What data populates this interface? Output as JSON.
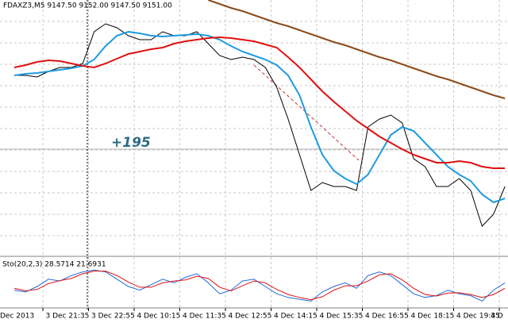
{
  "chart_data": [
    {
      "type": "line",
      "title": "FDAXZ3,M5  9147.50 9152.00 9147.50 9151.00",
      "annotation": "+195",
      "categories": [
        "Dec 2013",
        null,
        null,
        null,
        "3 Dec 21:35",
        null,
        null,
        null,
        "3 Dec 22:55",
        null,
        null,
        null,
        "4 Dec 10:15",
        null,
        null,
        null,
        "4 Dec 11:35",
        null,
        null,
        null,
        "4 Dec 12:55",
        null,
        null,
        null,
        "4 Dec 14:15",
        null,
        null,
        null,
        "4 Dec 15:35",
        null,
        null,
        null,
        "4 Dec 16:55",
        null,
        null,
        null,
        "4 Dec 18:15",
        null,
        null,
        null,
        "4 Dec 19:35",
        null,
        null,
        "4 D"
      ],
      "ylim": [
        9100,
        9180
      ],
      "series": [
        {
          "color": "#000000",
          "values": [
            9156.25,
            9156.25,
            9155.75,
            9157.5,
            9158.75,
            9158.75,
            9160,
            9170,
            9172.5,
            9171.25,
            9168.75,
            9167.5,
            9167.5,
            9170,
            9168.75,
            9168.75,
            9170,
            9166.25,
            9162.5,
            9161.25,
            9162,
            9161.25,
            9158.75,
            9152.5,
            9142.5,
            9131.25,
            9120,
            9122.5,
            9121.25,
            9121.25,
            9120,
            9140,
            9142.5,
            9143.75,
            9141.25,
            9130,
            9127.5,
            9121.25,
            9121.25,
            9123.75,
            9120,
            9108.75,
            9112.5,
            9121.25
          ]
        },
        {
          "color": "#1e9be0",
          "values": [
            9156.25,
            9156.75,
            9157,
            9157.5,
            9158,
            9158.5,
            9159.25,
            9161.25,
            9165.5,
            9168.75,
            9170,
            9169.5,
            9168.75,
            9168.5,
            9168.75,
            9169,
            9169.25,
            9168.75,
            9167.5,
            9165.5,
            9163.75,
            9162.5,
            9161.25,
            9159.5,
            9156.25,
            9150,
            9140,
            9131.25,
            9126.25,
            9123.75,
            9122,
            9125,
            9131.25,
            9137.5,
            9140,
            9138.75,
            9135,
            9131.25,
            9127.5,
            9125,
            9123,
            9118.75,
            9116.25,
            9117.5
          ]
        },
        {
          "color": "#e01010",
          "values": [
            9158.75,
            9159.5,
            9160.5,
            9161,
            9160.75,
            9160,
            9159.25,
            9158.75,
            9160,
            9161.5,
            9163,
            9163.75,
            9164.5,
            9165,
            9166.25,
            9167,
            9167.5,
            9168,
            9168.25,
            9168,
            9167.5,
            9167,
            9166,
            9165,
            9162,
            9158.75,
            9155,
            9151.25,
            9148,
            9145,
            9142,
            9139.5,
            9137,
            9135,
            9133,
            9131.25,
            9130,
            9128.75,
            9128.75,
            9129.25,
            9128.75,
            9127.5,
            9127,
            9127
          ]
        },
        {
          "color": "#8b4a1a",
          "values": [
            null,
            null,
            null,
            null,
            null,
            null,
            null,
            null,
            null,
            null,
            null,
            null,
            null,
            null,
            null,
            null,
            null,
            9180,
            9178.75,
            9177.5,
            9176.5,
            9175.25,
            9174,
            9172.75,
            9171.75,
            9170.5,
            9169.25,
            9168,
            9166.75,
            9165.75,
            9164.5,
            9163.25,
            9162,
            9161,
            9159.75,
            9158.5,
            9157.25,
            9156,
            9155,
            9153.75,
            9152.5,
            9151.25,
            9150,
            9149
          ]
        }
      ]
    },
    {
      "type": "line",
      "title": "Sto(20,2,3) 28.5714 21.6931",
      "ylim": [
        0,
        100
      ],
      "series": [
        {
          "color": "#1e6be0",
          "values": [
            40,
            35,
            50,
            70,
            65,
            80,
            90,
            95,
            90,
            70,
            50,
            40,
            55,
            70,
            60,
            75,
            85,
            60,
            30,
            40,
            65,
            70,
            50,
            30,
            20,
            15,
            10,
            35,
            50,
            60,
            45,
            80,
            90,
            80,
            55,
            30,
            20,
            25,
            40,
            30,
            25,
            10,
            40,
            60
          ]
        },
        {
          "color": "#e01010",
          "values": [
            45,
            38,
            42,
            58,
            66,
            72,
            85,
            92,
            92,
            80,
            62,
            48,
            48,
            60,
            65,
            68,
            78,
            72,
            48,
            38,
            52,
            65,
            60,
            42,
            28,
            20,
            14,
            22,
            40,
            52,
            52,
            65,
            82,
            85,
            68,
            45,
            28,
            24,
            32,
            33,
            28,
            20,
            28,
            45
          ]
        }
      ]
    }
  ]
}
